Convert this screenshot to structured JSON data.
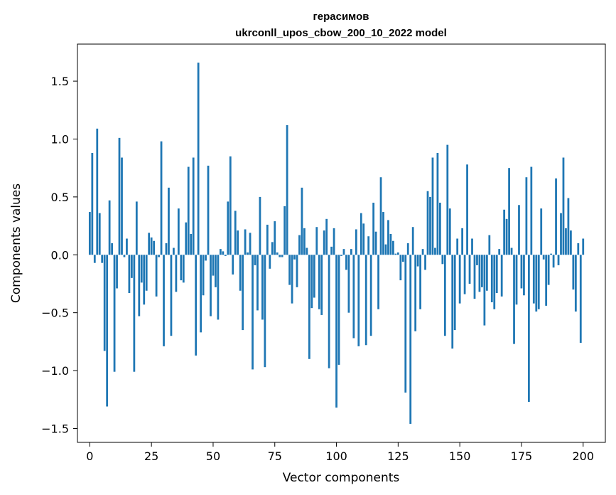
{
  "chart_data": {
    "type": "bar",
    "title_line1": "герасимов",
    "title_line2": "ukrconll_upos_cbow_200_10_2022 model",
    "xlabel": "Vector components",
    "ylabel": "Components values",
    "xlim": [
      -5,
      209
    ],
    "ylim": [
      -1.62,
      1.82
    ],
    "xticks": [
      0,
      25,
      50,
      75,
      100,
      125,
      150,
      175,
      200
    ],
    "yticks": [
      -1.5,
      -1.0,
      -0.5,
      0.0,
      0.5,
      1.0,
      1.5
    ],
    "ytick_labels": [
      "−1.5",
      "−1.0",
      "−0.5",
      "0.0",
      "0.5",
      "1.0",
      "1.5"
    ],
    "bar_color": "#1f77b4",
    "grid": false,
    "values": [
      0.37,
      0.88,
      -0.07,
      1.09,
      0.36,
      -0.07,
      -0.83,
      -1.31,
      0.47,
      0.1,
      -1.01,
      -0.29,
      1.01,
      0.84,
      -0.02,
      0.14,
      -0.33,
      -0.2,
      -1.01,
      0.46,
      -0.53,
      -0.24,
      -0.43,
      -0.31,
      0.19,
      0.15,
      0.12,
      -0.36,
      -0.02,
      0.98,
      -0.79,
      0.1,
      0.58,
      -0.7,
      0.06,
      -0.32,
      0.4,
      -0.22,
      -0.24,
      0.28,
      0.76,
      0.18,
      0.84,
      -0.87,
      1.66,
      -0.67,
      -0.35,
      -0.05,
      0.77,
      -0.53,
      -0.18,
      -0.28,
      -0.56,
      0.05,
      0.03,
      -0.01,
      0.46,
      0.85,
      -0.17,
      0.38,
      0.21,
      -0.31,
      -0.65,
      0.22,
      0.02,
      0.19,
      -0.99,
      -0.09,
      -0.48,
      0.5,
      -0.56,
      -0.97,
      0.26,
      -0.12,
      0.11,
      0.29,
      0.02,
      -0.02,
      -0.02,
      0.42,
      1.12,
      -0.26,
      -0.42,
      -0.04,
      -0.28,
      0.17,
      0.58,
      0.23,
      0.06,
      -0.9,
      -0.46,
      -0.37,
      0.24,
      -0.47,
      -0.52,
      0.21,
      0.31,
      -0.98,
      0.07,
      0.23,
      -1.32,
      -0.95,
      -0.01,
      0.05,
      -0.13,
      -0.5,
      0.05,
      -0.72,
      0.22,
      -0.79,
      0.36,
      0.27,
      -0.78,
      0.16,
      -0.7,
      0.45,
      0.2,
      -0.47,
      0.67,
      0.37,
      0.09,
      0.3,
      0.18,
      0.12,
      0.01,
      0.02,
      -0.22,
      -0.06,
      -1.19,
      0.1,
      -1.46,
      0.24,
      -0.66,
      -0.1,
      -0.47,
      0.05,
      -0.13,
      0.55,
      0.5,
      0.84,
      0.06,
      0.88,
      0.45,
      -0.08,
      -0.7,
      0.95,
      0.4,
      -0.81,
      -0.65,
      0.14,
      -0.42,
      0.23,
      -0.34,
      0.78,
      -0.25,
      0.14,
      -0.38,
      -0.09,
      -0.32,
      -0.28,
      -0.61,
      -0.31,
      0.17,
      -0.41,
      -0.47,
      -0.33,
      0.05,
      -0.36,
      0.39,
      0.31,
      0.75,
      0.06,
      -0.77,
      -0.43,
      0.43,
      -0.29,
      -0.35,
      0.67,
      -1.27,
      0.76,
      -0.42,
      -0.49,
      -0.47,
      0.4,
      -0.04,
      -0.44,
      -0.26,
      0.01,
      -0.11,
      0.66,
      -0.09,
      0.36,
      0.84,
      0.23,
      0.49,
      0.21,
      -0.3,
      -0.49,
      0.1,
      -0.76,
      0.14
    ]
  }
}
